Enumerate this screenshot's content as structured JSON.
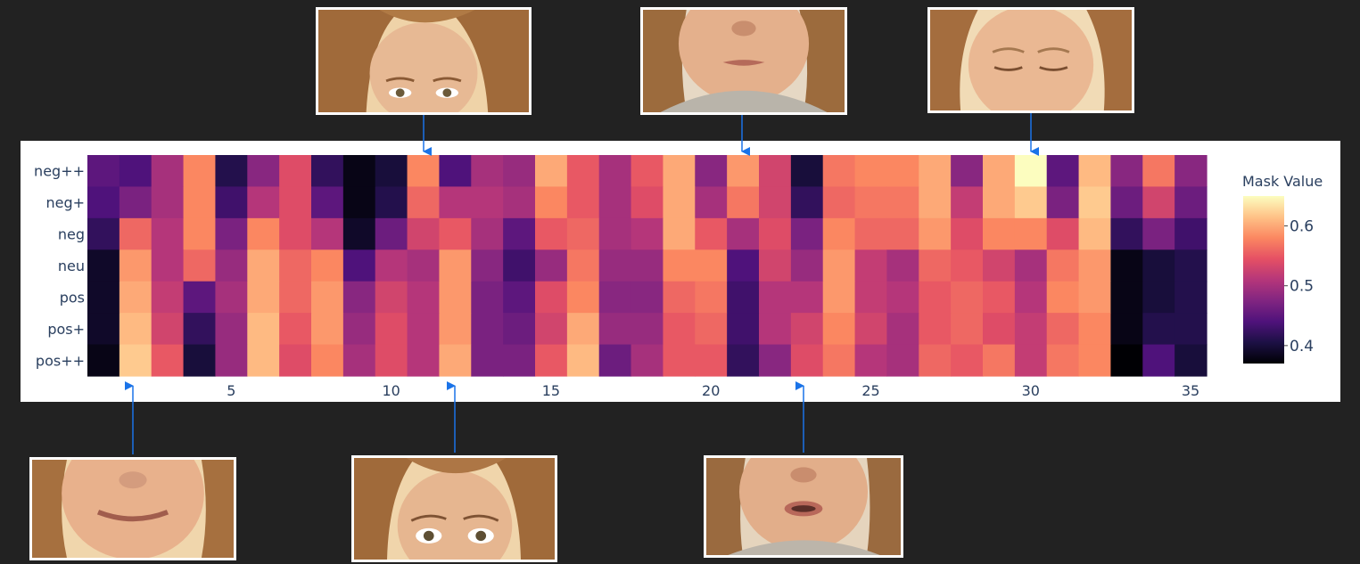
{
  "chart_data": {
    "type": "heatmap",
    "rows": [
      "neg++",
      "neg+",
      "neg",
      "neu",
      "pos",
      "pos+",
      "pos++"
    ],
    "x_ticks": [
      5,
      10,
      15,
      20,
      25,
      30,
      35
    ],
    "x_range": [
      1,
      35
    ],
    "colorbar": {
      "title": "Mask Value",
      "ticks": [
        0.6,
        0.5,
        0.4
      ],
      "range": [
        0.37,
        0.65
      ]
    },
    "colorscale": [
      "#000004",
      "#1c1044",
      "#4f127b",
      "#812581",
      "#b5367a",
      "#e55064",
      "#fb8761",
      "#fec287",
      "#fcfdbf"
    ],
    "values": [
      [
        0.45,
        0.44,
        0.5,
        0.58,
        0.41,
        0.48,
        0.54,
        0.42,
        0.38,
        0.4,
        0.58,
        0.44,
        0.5,
        0.49,
        0.6,
        0.55,
        0.5,
        0.55,
        0.6,
        0.48,
        0.59,
        0.53,
        0.4,
        0.57,
        0.58,
        0.58,
        0.6,
        0.48,
        0.6,
        0.65,
        0.45,
        0.61,
        0.48,
        0.57,
        0.48
      ],
      [
        0.44,
        0.47,
        0.5,
        0.58,
        0.43,
        0.51,
        0.54,
        0.45,
        0.38,
        0.41,
        0.56,
        0.51,
        0.51,
        0.5,
        0.58,
        0.55,
        0.5,
        0.54,
        0.6,
        0.5,
        0.57,
        0.53,
        0.42,
        0.56,
        0.57,
        0.57,
        0.6,
        0.52,
        0.6,
        0.62,
        0.47,
        0.62,
        0.46,
        0.53,
        0.46
      ],
      [
        0.42,
        0.56,
        0.51,
        0.58,
        0.47,
        0.58,
        0.54,
        0.51,
        0.39,
        0.46,
        0.53,
        0.55,
        0.5,
        0.45,
        0.55,
        0.56,
        0.5,
        0.51,
        0.6,
        0.55,
        0.5,
        0.54,
        0.47,
        0.58,
        0.56,
        0.56,
        0.59,
        0.54,
        0.58,
        0.58,
        0.54,
        0.61,
        0.42,
        0.47,
        0.43
      ],
      [
        0.39,
        0.59,
        0.51,
        0.56,
        0.49,
        0.6,
        0.56,
        0.58,
        0.44,
        0.51,
        0.5,
        0.59,
        0.48,
        0.43,
        0.49,
        0.57,
        0.49,
        0.49,
        0.58,
        0.58,
        0.44,
        0.53,
        0.49,
        0.59,
        0.52,
        0.5,
        0.56,
        0.55,
        0.53,
        0.5,
        0.57,
        0.59,
        0.38,
        0.4,
        0.41
      ],
      [
        0.39,
        0.6,
        0.52,
        0.45,
        0.5,
        0.6,
        0.56,
        0.59,
        0.48,
        0.53,
        0.51,
        0.59,
        0.47,
        0.45,
        0.54,
        0.58,
        0.48,
        0.48,
        0.56,
        0.57,
        0.43,
        0.51,
        0.51,
        0.59,
        0.52,
        0.51,
        0.55,
        0.56,
        0.55,
        0.51,
        0.58,
        0.59,
        0.38,
        0.4,
        0.41
      ],
      [
        0.39,
        0.61,
        0.53,
        0.42,
        0.49,
        0.61,
        0.55,
        0.59,
        0.49,
        0.54,
        0.51,
        0.59,
        0.47,
        0.46,
        0.53,
        0.6,
        0.49,
        0.49,
        0.55,
        0.56,
        0.43,
        0.51,
        0.53,
        0.58,
        0.53,
        0.5,
        0.55,
        0.56,
        0.54,
        0.52,
        0.56,
        0.58,
        0.38,
        0.41,
        0.41
      ],
      [
        0.38,
        0.62,
        0.55,
        0.4,
        0.49,
        0.61,
        0.54,
        0.58,
        0.5,
        0.54,
        0.51,
        0.6,
        0.47,
        0.47,
        0.55,
        0.61,
        0.46,
        0.5,
        0.55,
        0.55,
        0.42,
        0.48,
        0.54,
        0.57,
        0.51,
        0.5,
        0.56,
        0.55,
        0.57,
        0.52,
        0.57,
        0.58,
        0.37,
        0.44,
        0.4
      ]
    ]
  }
}
